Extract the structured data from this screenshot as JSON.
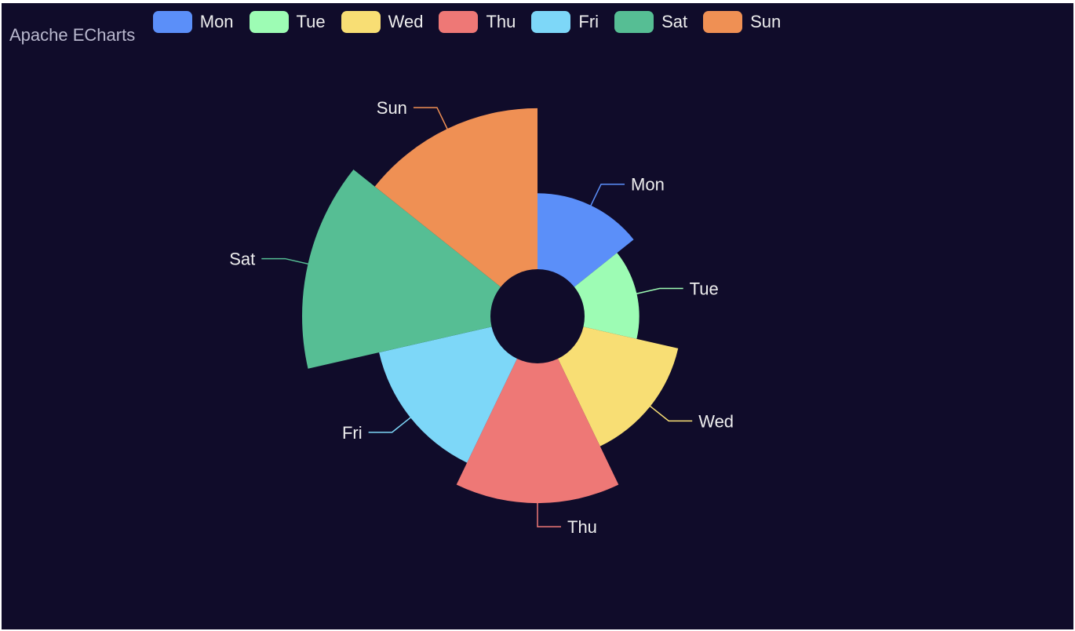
{
  "title": "Apache ECharts",
  "chart_data": {
    "type": "pie",
    "rose_type": "radius",
    "legend_position": "top",
    "categories": [
      "Mon",
      "Tue",
      "Wed",
      "Thu",
      "Fri",
      "Sat",
      "Sun"
    ],
    "values": [
      125,
      90,
      160,
      230,
      190,
      310,
      265
    ],
    "colors": [
      "#5b8ff9",
      "#9dfcb4",
      "#f8de74",
      "#ee7876",
      "#7dd7f8",
      "#56be94",
      "#ef9054"
    ]
  }
}
